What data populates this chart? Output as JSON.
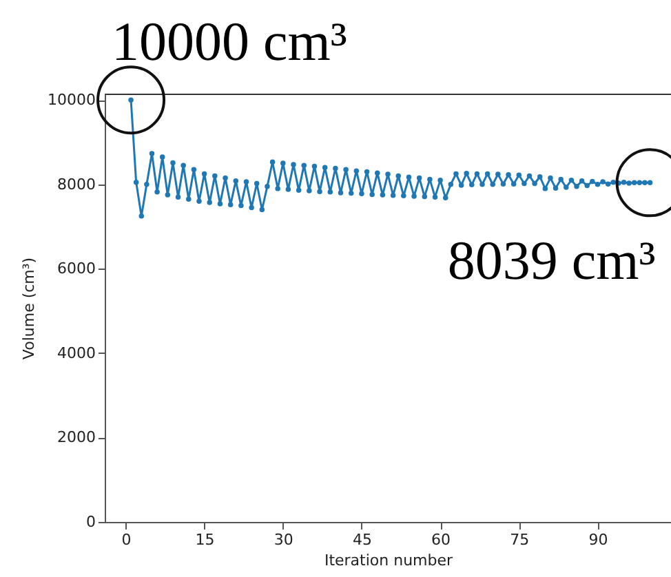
{
  "chart_data": {
    "type": "line",
    "xlabel": "Iteration number",
    "ylabel": "Volume (cm³)",
    "x": [
      1,
      2,
      3,
      4,
      5,
      6,
      7,
      8,
      9,
      10,
      11,
      12,
      13,
      14,
      15,
      16,
      17,
      18,
      19,
      20,
      21,
      22,
      23,
      24,
      25,
      26,
      27,
      28,
      29,
      30,
      31,
      32,
      33,
      34,
      35,
      36,
      37,
      38,
      39,
      40,
      41,
      42,
      43,
      44,
      45,
      46,
      47,
      48,
      49,
      50,
      51,
      52,
      53,
      54,
      55,
      56,
      57,
      58,
      59,
      60,
      61,
      62,
      63,
      64,
      65,
      66,
      67,
      68,
      69,
      70,
      71,
      72,
      73,
      74,
      75,
      76,
      77,
      78,
      79,
      80,
      81,
      82,
      83,
      84,
      85,
      86,
      87,
      88,
      89,
      90,
      91,
      92,
      93,
      94,
      95,
      96,
      97,
      98,
      99,
      100
    ],
    "series": [
      {
        "color": "#1f77b4",
        "values": [
          10000,
          8050,
          7250,
          8000,
          8730,
          7820,
          8650,
          7750,
          8510,
          7700,
          8450,
          7650,
          8350,
          7600,
          8250,
          7570,
          8200,
          7540,
          8150,
          7520,
          8080,
          7500,
          8060,
          7450,
          8020,
          7400,
          7950,
          8530,
          7900,
          8500,
          7880,
          8470,
          7860,
          8450,
          7850,
          8430,
          7830,
          8400,
          7820,
          8380,
          7800,
          8350,
          7790,
          8320,
          7780,
          8300,
          7760,
          8270,
          7750,
          8240,
          7740,
          8200,
          7730,
          8170,
          7720,
          8150,
          7710,
          8120,
          7700,
          8100,
          7680,
          8000,
          8250,
          7980,
          8260,
          7990,
          8250,
          8000,
          8250,
          8000,
          8240,
          8010,
          8230,
          8010,
          8220,
          8020,
          8200,
          8020,
          8180,
          7900,
          8150,
          7910,
          8120,
          7930,
          8100,
          7950,
          8080,
          7970,
          8070,
          8000,
          8060,
          8010,
          8050,
          8030,
          8050,
          8030,
          8040,
          8040,
          8040,
          8039
        ]
      }
    ],
    "xlim": [
      -4,
      104
    ],
    "xticks": [
      0,
      15,
      30,
      45,
      60,
      75,
      90
    ],
    "ylim": [
      0,
      10150
    ],
    "yticks": [
      0,
      2000,
      4000,
      6000,
      8000,
      10000
    ],
    "marker": "circle",
    "grid": false,
    "annotations": [
      {
        "text": "10000 cm³",
        "x": 1,
        "y": 10000
      },
      {
        "text": "8039 cm³",
        "x": 100,
        "y": 8039
      }
    ]
  }
}
